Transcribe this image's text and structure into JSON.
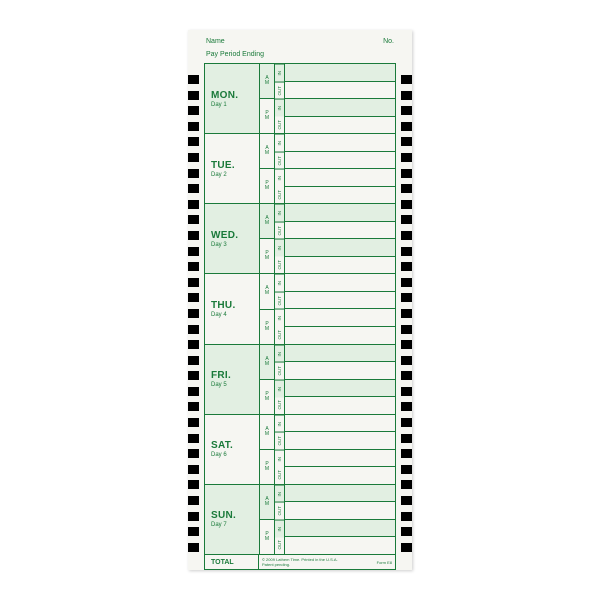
{
  "header": {
    "name_label": "Name",
    "no_label": "No.",
    "period_label": "Pay Period Ending"
  },
  "ampm": {
    "am_line1": "A",
    "am_line2": "M",
    "pm_line1": "P",
    "pm_line2": "M"
  },
  "inout": {
    "in": "IN",
    "out": "OUT"
  },
  "days": [
    {
      "abbr": "MON.",
      "num": "Day 1",
      "shaded": true
    },
    {
      "abbr": "TUE.",
      "num": "Day 2",
      "shaded": false
    },
    {
      "abbr": "WED.",
      "num": "Day 3",
      "shaded": true
    },
    {
      "abbr": "THU.",
      "num": "Day 4",
      "shaded": false
    },
    {
      "abbr": "FRI.",
      "num": "Day 5",
      "shaded": true
    },
    {
      "abbr": "SAT.",
      "num": "Day 6",
      "shaded": false
    },
    {
      "abbr": "SUN.",
      "num": "Day 7",
      "shaded": true
    }
  ],
  "footer": {
    "total": "TOTAL",
    "copyright": "© 2009 Lathem Time.  Printed in the U.S.A.",
    "patent": "Patent pending.",
    "form": "Form E8"
  },
  "style": {
    "green": "#1a7a3a",
    "light_green": "#e2efe2",
    "card_bg": "#f6f6f2",
    "notch_count": 31
  }
}
